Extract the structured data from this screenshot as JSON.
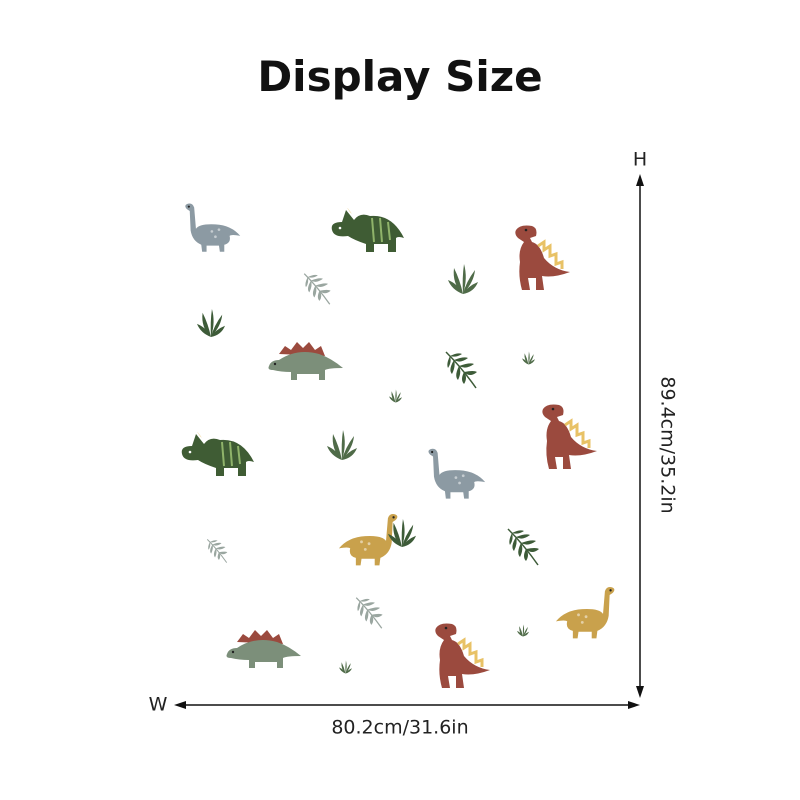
{
  "header": {
    "title": "Display Size"
  },
  "dimensions": {
    "height_label": "H",
    "height_value": "89.4cm/35.2in",
    "width_label": "W",
    "width_value": "80.2cm/31.6in"
  }
}
